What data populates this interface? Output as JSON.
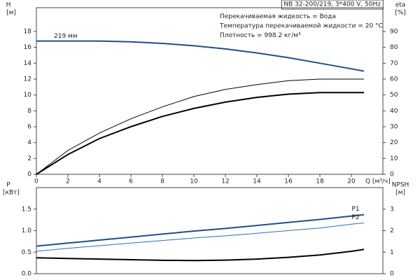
{
  "chart_data": [
    {
      "type": "line",
      "annotations": [
        "NB 32-200/219, 3*400 V, 50Hz",
        "Перекачиваемая жидкость = Вода",
        "Температура перекачиваемой жидкости = 20 °C",
        "Плотность = 998.2 кг/м³"
      ],
      "ylabel": [
        "H",
        "[м]"
      ],
      "y2label": [
        "eta",
        "[%]"
      ],
      "xlabel": "Q [м³/ч]",
      "x": [
        0,
        2,
        4,
        6,
        8,
        10,
        12,
        14,
        16,
        18,
        20,
        20.8
      ],
      "xlim": [
        0,
        22
      ],
      "xticks": [
        0,
        2,
        4,
        6,
        8,
        10,
        12,
        14,
        16,
        18,
        20
      ],
      "ylim": [
        0,
        21
      ],
      "yticks": [
        0,
        2,
        4,
        6,
        8,
        10,
        12,
        14,
        16,
        18
      ],
      "y2lim": [
        0,
        105
      ],
      "y2ticks": [
        0,
        10,
        20,
        30,
        40,
        50,
        60,
        70,
        80,
        90
      ],
      "grid": false,
      "series": [
        {
          "name": "219 мм",
          "color": "#1f4e8c",
          "line_width": 2,
          "values": [
            16.8,
            16.8,
            16.8,
            16.7,
            16.5,
            16.2,
            15.8,
            15.3,
            14.7,
            14.0,
            13.3,
            13.0
          ]
        },
        {
          "color": "#000000",
          "line_width": 1,
          "axis": "y2",
          "values": [
            0,
            15,
            26,
            35,
            42.5,
            49,
            53.5,
            56.5,
            59,
            60,
            60,
            60
          ]
        },
        {
          "color": "#000000",
          "line_width": 2,
          "axis": "y2",
          "values": [
            0,
            12.5,
            22.5,
            30,
            36.5,
            41.5,
            45.5,
            48.5,
            50.5,
            51.5,
            51.5,
            51.5
          ]
        }
      ]
    },
    {
      "type": "line",
      "ylabel": [
        "P",
        "[кВт]"
      ],
      "y2label": [
        "NPSH",
        "[м]"
      ],
      "x": [
        0,
        2,
        4,
        6,
        8,
        10,
        12,
        14,
        16,
        18,
        20,
        20.8
      ],
      "xlim": [
        0,
        22
      ],
      "ylim": [
        0,
        2
      ],
      "yticks": [
        {
          "value": 0,
          "label": "0.0"
        },
        0.5,
        {
          "value": 1,
          "label": "1.0"
        },
        1.5
      ],
      "y2lim": [
        0,
        4
      ],
      "y2ticks": [
        0,
        1,
        2,
        3
      ],
      "grid": false,
      "series": [
        {
          "name": "P1",
          "color": "#1f4e8c",
          "line_width": 2,
          "values": [
            0.64,
            0.71,
            0.78,
            0.85,
            0.92,
            0.99,
            1.05,
            1.12,
            1.19,
            1.26,
            1.34,
            1.37
          ]
        },
        {
          "name": "P2",
          "color": "#2a6fb5",
          "line_width": 1,
          "values": [
            0.52,
            0.59,
            0.65,
            0.71,
            0.77,
            0.83,
            0.88,
            0.94,
            1.0,
            1.06,
            1.15,
            1.18
          ]
        },
        {
          "color": "#000000",
          "line_width": 2,
          "axis": "y2",
          "values": [
            0.74,
            0.71,
            0.68,
            0.65,
            0.62,
            0.61,
            0.63,
            0.68,
            0.76,
            0.87,
            1.04,
            1.13
          ]
        }
      ]
    }
  ]
}
